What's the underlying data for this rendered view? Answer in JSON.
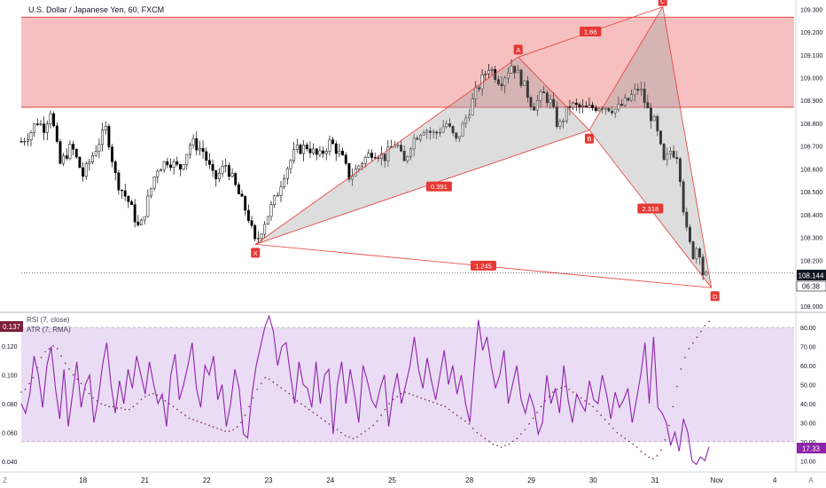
{
  "header": {
    "symbol_title": "U.S. Dollar / Japanese Yen, 60, FXCM"
  },
  "indicators": {
    "rsi_label": "RSI (7, close)",
    "atr_label": "ATR (7, RMA)",
    "rsi_value": "17.33",
    "atr_value": "0.137"
  },
  "price_badges": {
    "last_price": "108.144",
    "countdown": "06:38"
  },
  "corner_labels": {
    "left": "Z",
    "right": "A"
  },
  "colors": {
    "zone_fill": "#f5b5b5",
    "zone_line": "#e53935",
    "pattern_line": "#e53935",
    "pattern_fill": "#9e9e9e",
    "rsi_line": "#8e24aa",
    "rsi_band": "#e6d6f3",
    "atr_dots": "#7b1f3a",
    "badge_bg": "#e53935",
    "last_price_bg": "#131722"
  },
  "chart_data": [
    {
      "type": "candlestick",
      "title": "U.S. Dollar / Japanese Yen, 60, FXCM",
      "x_ticks": [
        "18",
        "21",
        "22",
        "23",
        "24",
        "25",
        "28",
        "29",
        "30",
        "31",
        "Nov",
        "4"
      ],
      "y_ticks": [
        "108.000",
        "108.100",
        "108.200",
        "108.300",
        "108.400",
        "108.500",
        "108.600",
        "108.700",
        "108.800",
        "108.900",
        "109.000",
        "109.100",
        "109.200",
        "109.300"
      ],
      "ylim": [
        107.98,
        109.34
      ],
      "resistance_zone": [
        108.87,
        109.265
      ],
      "last_price": 108.144,
      "price_path": [
        {
          "t": 0.0,
          "p": 108.72
        },
        {
          "t": 1.2,
          "p": 108.76
        },
        {
          "t": 2.0,
          "p": 108.81
        },
        {
          "t": 3.0,
          "p": 108.78
        },
        {
          "t": 3.8,
          "p": 108.86
        },
        {
          "t": 5.0,
          "p": 108.62
        },
        {
          "t": 6.5,
          "p": 108.7
        },
        {
          "t": 8.0,
          "p": 108.57
        },
        {
          "t": 9.5,
          "p": 108.68
        },
        {
          "t": 11.0,
          "p": 108.78
        },
        {
          "t": 12.3,
          "p": 108.55
        },
        {
          "t": 14.0,
          "p": 108.45
        },
        {
          "t": 15.3,
          "p": 108.33
        },
        {
          "t": 16.5,
          "p": 108.48
        },
        {
          "t": 17.5,
          "p": 108.6
        },
        {
          "t": 19.0,
          "p": 108.64
        },
        {
          "t": 20.5,
          "p": 108.6
        },
        {
          "t": 22.0,
          "p": 108.72
        },
        {
          "t": 23.5,
          "p": 108.68
        },
        {
          "t": 25.0,
          "p": 108.55
        },
        {
          "t": 26.5,
          "p": 108.62
        },
        {
          "t": 28.0,
          "p": 108.5
        },
        {
          "t": 29.3,
          "p": 108.4
        },
        {
          "t": 30.3,
          "p": 108.27
        },
        {
          "t": 31.5,
          "p": 108.37
        },
        {
          "t": 33.0,
          "p": 108.48
        },
        {
          "t": 34.0,
          "p": 108.58
        },
        {
          "t": 35.5,
          "p": 108.68
        },
        {
          "t": 37.0,
          "p": 108.7
        },
        {
          "t": 38.5,
          "p": 108.65
        },
        {
          "t": 40.0,
          "p": 108.72
        },
        {
          "t": 41.5,
          "p": 108.65
        },
        {
          "t": 42.5,
          "p": 108.56
        },
        {
          "t": 44.0,
          "p": 108.63
        },
        {
          "t": 45.5,
          "p": 108.68
        },
        {
          "t": 47.0,
          "p": 108.65
        },
        {
          "t": 48.5,
          "p": 108.72
        },
        {
          "t": 49.5,
          "p": 108.62
        },
        {
          "t": 50.5,
          "p": 108.72
        },
        {
          "t": 52.0,
          "p": 108.78
        },
        {
          "t": 53.5,
          "p": 108.75
        },
        {
          "t": 55.0,
          "p": 108.8
        },
        {
          "t": 56.3,
          "p": 108.72
        },
        {
          "t": 57.5,
          "p": 108.82
        },
        {
          "t": 59.0,
          "p": 108.95
        },
        {
          "t": 60.5,
          "p": 109.05
        },
        {
          "t": 62.0,
          "p": 108.98
        },
        {
          "t": 63.5,
          "p": 109.06
        },
        {
          "t": 65.0,
          "p": 108.97
        },
        {
          "t": 66.2,
          "p": 108.87
        },
        {
          "t": 67.5,
          "p": 108.93
        },
        {
          "t": 68.5,
          "p": 108.89
        },
        {
          "t": 69.5,
          "p": 108.78
        },
        {
          "t": 71.0,
          "p": 108.88
        },
        {
          "t": 73.0,
          "p": 108.86
        },
        {
          "t": 75.0,
          "p": 108.88
        },
        {
          "t": 77.0,
          "p": 108.86
        },
        {
          "t": 78.5,
          "p": 108.9
        },
        {
          "t": 80.0,
          "p": 108.96
        },
        {
          "t": 81.0,
          "p": 108.86
        },
        {
          "t": 82.0,
          "p": 108.8
        },
        {
          "t": 83.2,
          "p": 108.62
        },
        {
          "t": 84.0,
          "p": 108.68
        },
        {
          "t": 85.0,
          "p": 108.66
        },
        {
          "t": 85.6,
          "p": 108.45
        },
        {
          "t": 86.2,
          "p": 108.3
        },
        {
          "t": 87.0,
          "p": 108.22
        },
        {
          "t": 87.6,
          "p": 108.28
        },
        {
          "t": 88.3,
          "p": 108.12
        },
        {
          "t": 89.0,
          "p": 108.14
        }
      ],
      "harmonic_pattern": {
        "points": [
          {
            "label": "X",
            "t": 30.3,
            "p": 108.27
          },
          {
            "label": "A",
            "t": 64.3,
            "p": 109.09
          },
          {
            "label": "B",
            "t": 73.5,
            "p": 108.77
          },
          {
            "label": "C",
            "t": 83.0,
            "p": 109.31
          },
          {
            "label": "D",
            "t": 89.3,
            "p": 108.08
          }
        ],
        "ratios": [
          {
            "label": "0.391",
            "between": "XB"
          },
          {
            "label": "1.66",
            "between": "AC"
          },
          {
            "label": "2.318",
            "between": "BD"
          },
          {
            "label": "1.245",
            "between": "XD"
          }
        ]
      }
    },
    {
      "type": "line",
      "title": "RSI (7, close)",
      "y_ticks": [
        "10.00",
        "20.00",
        "30.00",
        "40.00",
        "50.00",
        "60.00",
        "70.00",
        "80.00"
      ],
      "ylim": [
        5,
        87
      ],
      "band": [
        20,
        80
      ],
      "last_value": 17.33,
      "rsi_values": [
        40,
        35,
        45,
        65,
        55,
        38,
        60,
        70,
        48,
        32,
        58,
        28,
        45,
        62,
        38,
        50,
        55,
        30,
        42,
        60,
        72,
        50,
        35,
        52,
        40,
        58,
        48,
        65,
        55,
        45,
        62,
        50,
        40,
        45,
        28,
        55,
        66,
        42,
        50,
        60,
        72,
        48,
        38,
        60,
        55,
        65,
        42,
        50,
        28,
        40,
        58,
        48,
        24,
        22,
        45,
        60,
        70,
        80,
        86,
        78,
        60,
        70,
        72,
        55,
        40,
        62,
        50,
        48,
        38,
        62,
        40,
        55,
        58,
        24,
        50,
        62,
        40,
        58,
        45,
        30,
        60,
        52,
        42,
        38,
        48,
        55,
        28,
        45,
        56,
        40,
        50,
        60,
        75,
        58,
        48,
        64,
        52,
        42,
        55,
        68,
        50,
        60,
        45,
        55,
        40,
        30,
        58,
        84,
        68,
        75,
        60,
        48,
        55,
        68,
        40,
        50,
        60,
        42,
        35,
        45,
        38,
        24,
        30,
        55,
        40,
        48,
        35,
        60,
        42,
        30,
        45,
        40,
        36,
        52,
        42,
        40,
        55,
        45,
        32,
        46,
        38,
        42,
        48,
        30,
        42,
        55,
        72,
        40,
        75,
        38,
        35,
        30,
        18,
        25,
        15,
        32,
        25,
        10,
        8,
        12,
        10,
        17.33
      ],
      "atr_values": [
        0.088,
        0.09,
        0.094,
        0.098,
        0.105,
        0.112,
        0.116,
        0.118,
        0.12,
        0.118,
        0.113,
        0.108,
        0.104,
        0.1,
        0.097,
        0.094,
        0.09,
        0.087,
        0.084,
        0.082,
        0.08,
        0.079,
        0.078,
        0.078,
        0.077,
        0.077,
        0.076,
        0.076,
        0.078,
        0.08,
        0.083,
        0.085,
        0.086,
        0.087,
        0.086,
        0.084,
        0.082,
        0.08,
        0.078,
        0.076,
        0.074,
        0.072,
        0.07,
        0.069,
        0.068,
        0.067,
        0.066,
        0.065,
        0.064,
        0.063,
        0.062,
        0.061,
        0.061,
        0.062,
        0.064,
        0.067,
        0.072,
        0.078,
        0.084,
        0.09,
        0.094,
        0.098,
        0.097,
        0.095,
        0.093,
        0.091,
        0.089,
        0.087,
        0.084,
        0.082,
        0.08,
        0.078,
        0.076,
        0.074,
        0.072,
        0.07,
        0.068,
        0.066,
        0.064,
        0.062,
        0.06,
        0.058,
        0.057,
        0.056,
        0.057,
        0.059,
        0.061,
        0.063,
        0.065,
        0.068,
        0.072,
        0.076,
        0.08,
        0.083,
        0.085,
        0.087,
        0.088,
        0.087,
        0.086,
        0.085,
        0.084,
        0.083,
        0.082,
        0.081,
        0.08,
        0.079,
        0.078,
        0.076,
        0.074,
        0.072,
        0.07,
        0.068,
        0.066,
        0.063,
        0.06,
        0.058,
        0.056,
        0.054,
        0.052,
        0.051,
        0.05,
        0.051,
        0.052,
        0.054,
        0.056,
        0.059,
        0.062,
        0.066,
        0.07,
        0.074,
        0.078,
        0.082,
        0.085,
        0.088,
        0.09,
        0.091,
        0.092,
        0.09,
        0.088,
        0.086,
        0.084,
        0.082,
        0.08,
        0.078,
        0.075,
        0.072,
        0.069,
        0.066,
        0.063,
        0.06,
        0.058,
        0.056,
        0.054,
        0.052,
        0.05,
        0.047,
        0.045,
        0.043,
        0.042,
        0.044,
        0.048,
        0.055,
        0.065,
        0.078,
        0.092,
        0.104,
        0.112,
        0.118,
        0.122,
        0.126,
        0.13,
        0.134,
        0.137
      ],
      "atr_ticks": [
        "0.040",
        "0.060",
        "0.080",
        "0.100",
        "0.120",
        "0.140"
      ],
      "atr_ylim": [
        0.034,
        0.142
      ],
      "legend": [
        "RSI (7, close)",
        "ATR (7, RMA)"
      ]
    }
  ]
}
